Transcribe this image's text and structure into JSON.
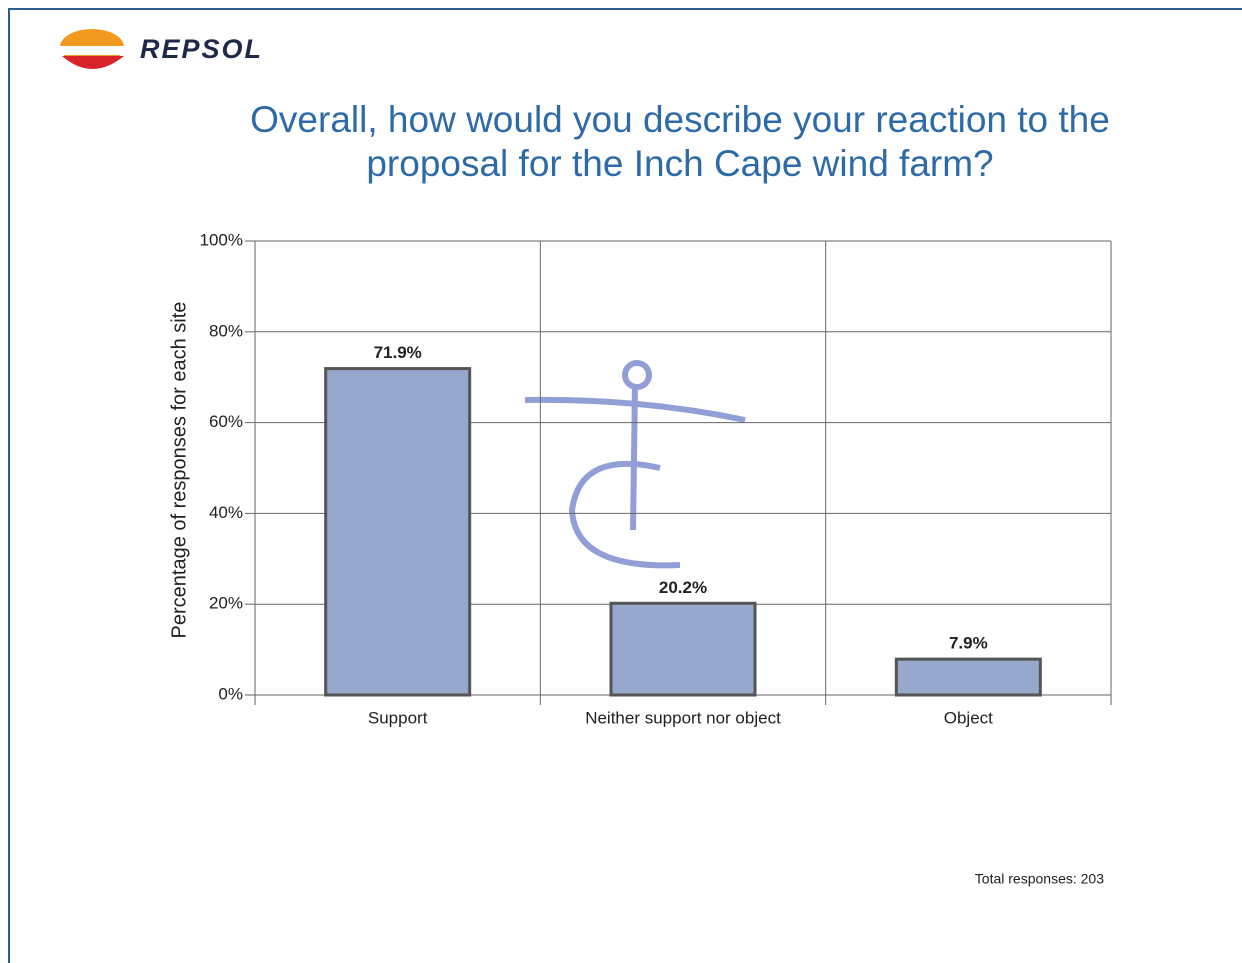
{
  "logo": "REPSOL",
  "chart_data": {
    "type": "bar",
    "title": "Overall, how would you describe your reaction to the proposal for the Inch Cape wind farm?",
    "y_label": "Percentage of responses for each site",
    "categories": [
      "Support",
      "Neither support nor object",
      "Object"
    ],
    "values": [
      71.9,
      20.2,
      7.9
    ],
    "value_labels": [
      "71.9%",
      "20.2%",
      "7.9%"
    ],
    "color": "#96a8cc",
    "ylim": [
      0,
      100
    ],
    "yticks": [
      {
        "value": 0,
        "label": "0%"
      },
      {
        "value": 20,
        "label": "20%"
      },
      {
        "value": 40,
        "label": "40%"
      },
      {
        "value": 60,
        "label": "60%"
      },
      {
        "value": 80,
        "label": "80%"
      },
      {
        "value": 100,
        "label": "100%"
      }
    ],
    "grid": true,
    "note": "Total responses: 203"
  }
}
